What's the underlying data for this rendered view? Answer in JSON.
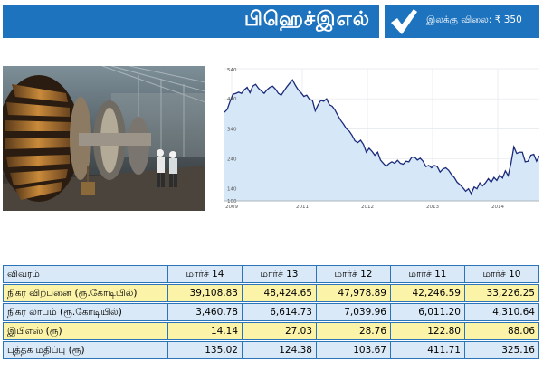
{
  "header": {
    "title": "பிஹெச்இஎல்",
    "target_price": "இலக்கு விலை: ₹ 350"
  },
  "chart_data": {
    "type": "line",
    "y_ticks": [
      "540",
      "440",
      "340",
      "240",
      "140",
      "100"
    ],
    "x_ticks": [
      "2009",
      "2011",
      "2012",
      "2013",
      "2014"
    ],
    "ylim": [
      100,
      540
    ],
    "series": [
      {
        "values": [
          395,
          405,
          432,
          455,
          458,
          462,
          458,
          470,
          478,
          460,
          482,
          488,
          475,
          466,
          458,
          470,
          478,
          482,
          472,
          458,
          452,
          466,
          480,
          492,
          503,
          485,
          470,
          460,
          448,
          452,
          438,
          435,
          400,
          420,
          435,
          432,
          440,
          420,
          415,
          402,
          384,
          368,
          355,
          340,
          332,
          318,
          300,
          294,
          302,
          288,
          262,
          275,
          265,
          252,
          262,
          236,
          225,
          215,
          224,
          230,
          225,
          235,
          225,
          222,
          232,
          230,
          245,
          246,
          236,
          242,
          232,
          214,
          218,
          210,
          218,
          214,
          196,
          206,
          210,
          202,
          188,
          178,
          162,
          154,
          144,
          132,
          140,
          124,
          146,
          140,
          160,
          150,
          160,
          174,
          162,
          178,
          168,
          186,
          176,
          200,
          184,
          226,
          280,
          258,
          262,
          262,
          230,
          232,
          252,
          255,
          232,
          250
        ]
      }
    ]
  },
  "table": {
    "headers": [
      "விவரம்",
      "மார்ச் 14",
      "மார்ச் 13",
      "மார்ச் 12",
      "மார்ச் 11",
      "மார்ச் 10"
    ],
    "rows": [
      {
        "label": "நிகர விற்பனை (ரூ.கோடியில்)",
        "values": [
          "39,108.83",
          "48,424.65",
          "47,978.89",
          "42,246.59",
          "33,226.25"
        ]
      },
      {
        "label": "நிகர லாபம் (ரூ.கோடியில்)",
        "values": [
          "3,460.78",
          "6,614.73",
          "7,039.96",
          "6,011.20",
          "4,310.64"
        ]
      },
      {
        "label": "இபிஎஸ் (ரூ)",
        "values": [
          "14.14",
          "27.03",
          "28.76",
          "122.80",
          "88.06"
        ]
      },
      {
        "label": "புத்தக மதிப்பு (ரூ)",
        "values": [
          "135.02",
          "124.38",
          "103.67",
          "411.71",
          "325.16"
        ]
      }
    ]
  },
  "colors": {
    "header_blue": "#1e73be",
    "row_yellow": "#fbf3a8",
    "row_blue": "#d9e9f7",
    "line": "#1a2a7a",
    "area": "#d6e7f7"
  }
}
